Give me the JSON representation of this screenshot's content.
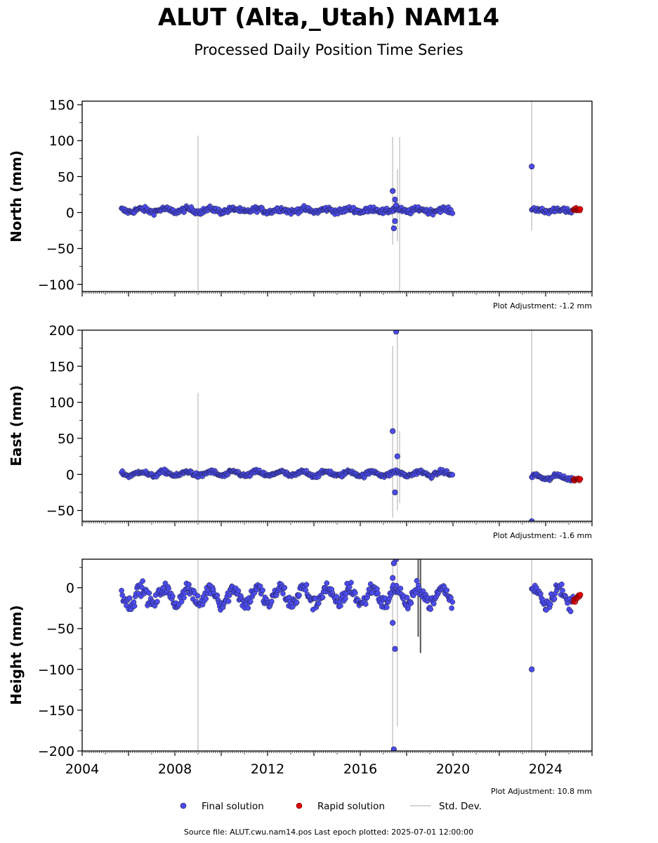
{
  "figure": {
    "title": "ALUT (Alta,_Utah) NAM14",
    "subtitle": "Processed Daily Position Time Series",
    "source": "Source file: ALUT.cwu.nam14.pos  Last epoch plotted: 2025-07-01 12:00:00"
  },
  "legend": {
    "final": "Final solution",
    "rapid": "Rapid solution",
    "std": "Std. Dev."
  },
  "colors": {
    "final": "#4b4bf0",
    "rapid": "#e00000",
    "std": "#c8c8c8",
    "edge": "#1a1a3a"
  },
  "chart_data": [
    {
      "type": "scatter",
      "ylabel": "North (mm)",
      "adjustment": "Plot Adjustment: -1.2 mm",
      "xlim": [
        2004,
        2026
      ],
      "ylim": [
        -110,
        155
      ],
      "yticks": [
        150,
        100,
        50,
        0,
        -50,
        -100
      ],
      "ytick_labels": [
        "150",
        "100",
        "50",
        "0",
        "−50",
        "−100"
      ],
      "series": [
        {
          "kind": "final",
          "segments": [
            [
              2005.7,
              2020.0
            ],
            [
              2023.4,
              2025.2
            ]
          ],
          "baseline": 3,
          "amp": 2,
          "noise": 2.5
        },
        {
          "kind": "rapid",
          "segments": [
            [
              2025.2,
              2025.5
            ]
          ],
          "baseline": 4,
          "amp": 0.5,
          "noise": 1.5
        }
      ],
      "outliers": [
        [
          2017.4,
          30
        ],
        [
          2017.5,
          18
        ],
        [
          2017.5,
          -12
        ],
        [
          2017.45,
          -22
        ],
        [
          2017.55,
          10
        ],
        [
          2023.4,
          64
        ]
      ],
      "stdbars": [
        [
          2009.0,
          -108,
          107
        ],
        [
          2017.4,
          -45,
          105
        ],
        [
          2017.6,
          -40,
          60
        ],
        [
          2017.7,
          -110,
          105
        ],
        [
          2023.4,
          -25,
          155
        ]
      ]
    },
    {
      "type": "scatter",
      "ylabel": "East (mm)",
      "adjustment": "Plot Adjustment: -1.6 mm",
      "xlim": [
        2004,
        2026
      ],
      "ylim": [
        -65,
        200
      ],
      "yticks": [
        200,
        150,
        100,
        50,
        0,
        -50
      ],
      "ytick_labels": [
        "200",
        "150",
        "100",
        "50",
        "0",
        "−50"
      ],
      "series": [
        {
          "kind": "final",
          "segments": [
            [
              2005.7,
              2020.0
            ],
            [
              2023.4,
              2025.2
            ]
          ],
          "baseline": 1,
          "amp": 3,
          "noise": 2,
          "seg2_offset": -5
        },
        {
          "kind": "rapid",
          "segments": [
            [
              2025.2,
              2025.5
            ]
          ],
          "baseline": -7,
          "amp": 0.5,
          "noise": 1.5
        }
      ],
      "outliers": [
        [
          2017.4,
          60
        ],
        [
          2017.6,
          25
        ],
        [
          2017.5,
          -25
        ],
        [
          2017.55,
          198
        ],
        [
          2023.4,
          -65
        ]
      ],
      "stdbars": [
        [
          2009.0,
          -65,
          113
        ],
        [
          2017.4,
          -60,
          178
        ],
        [
          2017.6,
          -50,
          200
        ],
        [
          2017.7,
          -40,
          60
        ],
        [
          2023.4,
          -65,
          200
        ]
      ]
    },
    {
      "type": "scatter",
      "ylabel": "Height (mm)",
      "adjustment": "Plot Adjustment: 10.8 mm",
      "xlim": [
        2004,
        2026
      ],
      "ylim": [
        -200,
        35
      ],
      "yticks": [
        0,
        -50,
        -100,
        -150,
        -200
      ],
      "ytick_labels": [
        "0",
        "−50",
        "−100",
        "−150",
        "−200"
      ],
      "xticks": [
        2004,
        2008,
        2012,
        2016,
        2020,
        2024
      ],
      "xtick_labels": [
        "2004",
        "2008",
        "2012",
        "2016",
        "2020",
        "2024"
      ],
      "series": [
        {
          "kind": "final",
          "segments": [
            [
              2005.7,
              2020.0
            ],
            [
              2023.4,
              2025.2
            ]
          ],
          "baseline": -10,
          "amp": 10,
          "noise": 6
        },
        {
          "kind": "rapid",
          "segments": [
            [
              2025.2,
              2025.5
            ]
          ],
          "baseline": -13,
          "amp": 2,
          "noise": 3
        }
      ],
      "outliers": [
        [
          2017.45,
          30
        ],
        [
          2017.55,
          35
        ],
        [
          2017.5,
          -75
        ],
        [
          2017.4,
          -43
        ],
        [
          2017.45,
          -198
        ],
        [
          2023.4,
          -100
        ],
        [
          2017.4,
          12
        ]
      ],
      "stdbars": [
        [
          2009.0,
          -200,
          35
        ],
        [
          2017.4,
          -200,
          35
        ],
        [
          2017.6,
          -170,
          35
        ],
        [
          2023.4,
          -200,
          35
        ]
      ],
      "darkbars": [
        [
          2018.5,
          -60,
          35
        ],
        [
          2018.6,
          -80,
          35
        ]
      ]
    }
  ]
}
